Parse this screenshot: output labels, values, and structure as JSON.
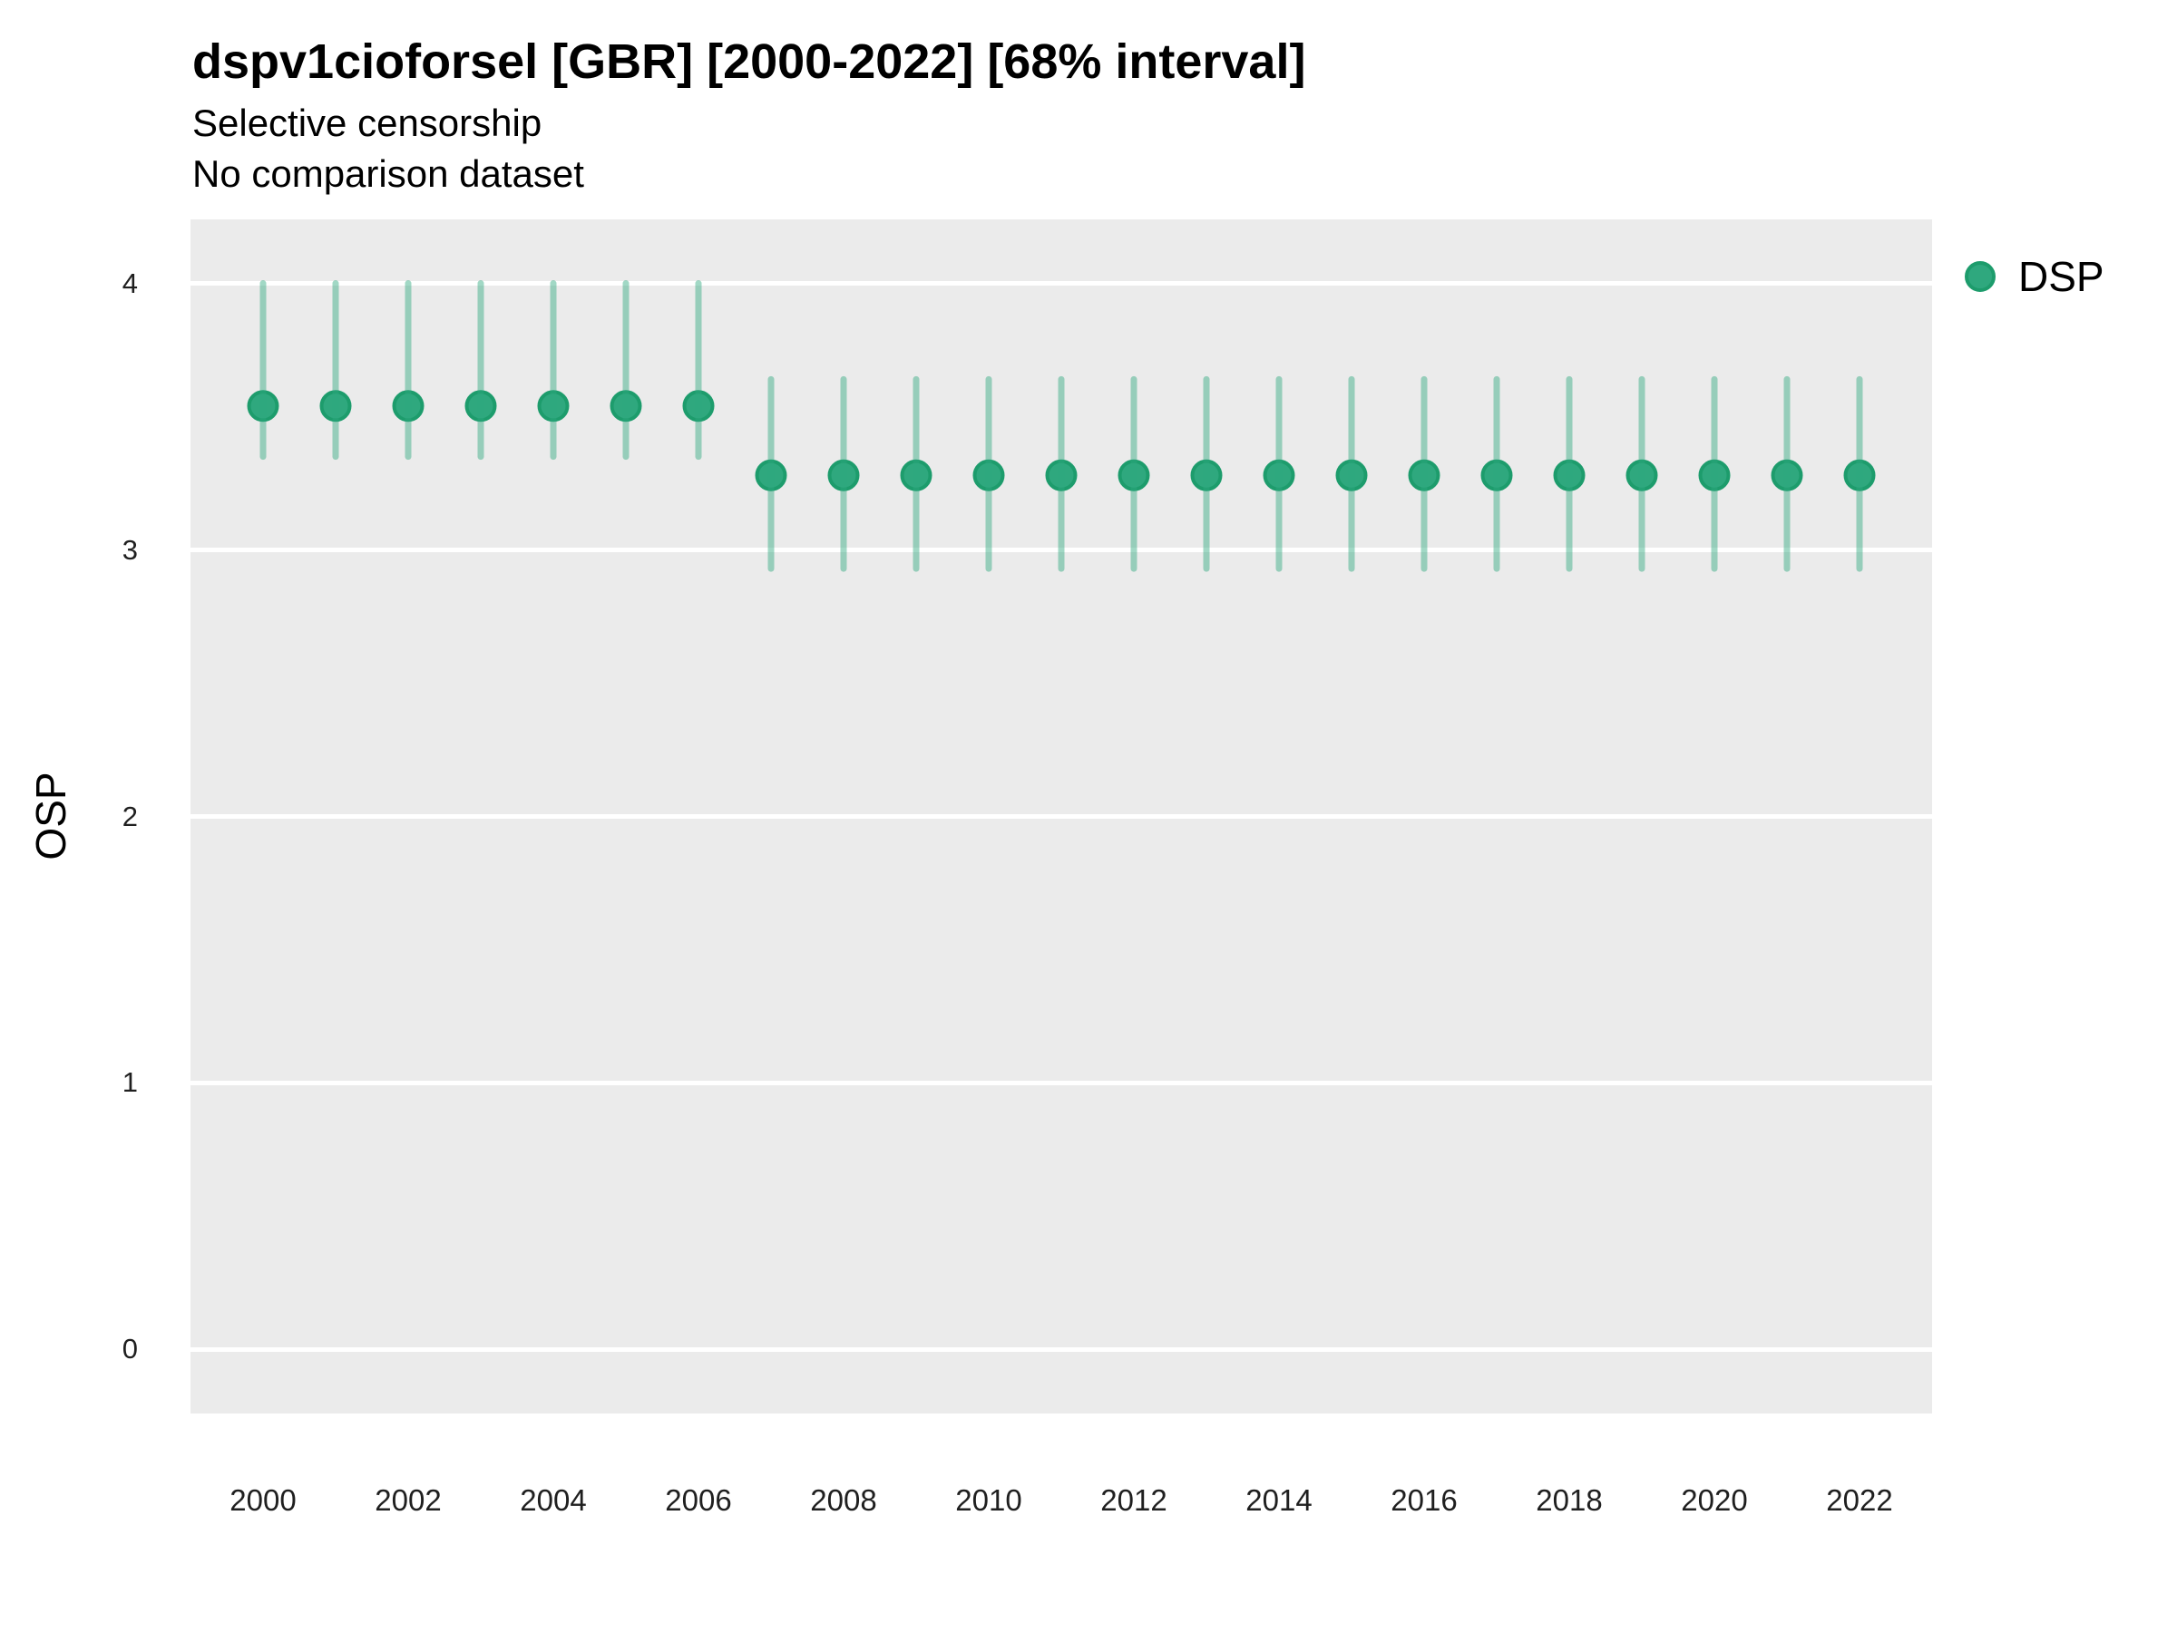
{
  "header": {
    "title": "dspv1cioforsel [GBR] [2000-2022] [68% interval]",
    "subtitle_line1": "Selective censorship",
    "subtitle_line2": "No comparison dataset"
  },
  "legend": {
    "items": [
      {
        "label": "DSP",
        "color": "#2fa87e"
      }
    ],
    "position": "right"
  },
  "chart_data": {
    "type": "pointrange",
    "title": "dspv1cioforsel [GBR] [2000-2022] [68% interval]",
    "subtitle": [
      "Selective censorship",
      "No comparison dataset"
    ],
    "interval_label": "68% interval",
    "xlabel": "",
    "ylabel": "OSP",
    "legend_position": "right",
    "grid": "horizontal-major-only",
    "xlim": [
      1999,
      2023
    ],
    "ylim": [
      -0.24,
      4.24
    ],
    "xticks": [
      2000,
      2002,
      2004,
      2006,
      2008,
      2010,
      2012,
      2014,
      2016,
      2018,
      2020,
      2022
    ],
    "yticks": [
      0,
      1,
      2,
      3,
      4
    ],
    "series": [
      {
        "name": "DSP",
        "x": [
          2000,
          2001,
          2002,
          2003,
          2004,
          2005,
          2006,
          2007,
          2008,
          2009,
          2010,
          2011,
          2012,
          2013,
          2014,
          2015,
          2016,
          2017,
          2018,
          2019,
          2020,
          2021,
          2022
        ],
        "y": [
          3.54,
          3.54,
          3.54,
          3.54,
          3.54,
          3.54,
          3.54,
          3.28,
          3.28,
          3.28,
          3.28,
          3.28,
          3.28,
          3.28,
          3.28,
          3.28,
          3.28,
          3.28,
          3.28,
          3.28,
          3.28,
          3.28,
          3.28
        ],
        "y_lower": [
          3.35,
          3.35,
          3.35,
          3.35,
          3.35,
          3.35,
          3.35,
          2.93,
          2.93,
          2.93,
          2.93,
          2.93,
          2.93,
          2.93,
          2.93,
          2.93,
          2.93,
          2.93,
          2.93,
          2.93,
          2.93,
          2.93,
          2.93
        ],
        "y_upper": [
          4.0,
          4.0,
          4.0,
          4.0,
          4.0,
          4.0,
          4.0,
          3.64,
          3.64,
          3.64,
          3.64,
          3.64,
          3.64,
          3.64,
          3.64,
          3.64,
          3.64,
          3.64,
          3.64,
          3.64,
          3.64,
          3.64,
          3.64
        ]
      }
    ],
    "colors": {
      "point_fill": "#2fa87e",
      "point_stroke": "#1d9c6c",
      "range_bar": "#2fa87e",
      "range_bar_opacity": 0.45,
      "panel_background": "#ebebeb",
      "gridline": "#ffffff"
    }
  }
}
